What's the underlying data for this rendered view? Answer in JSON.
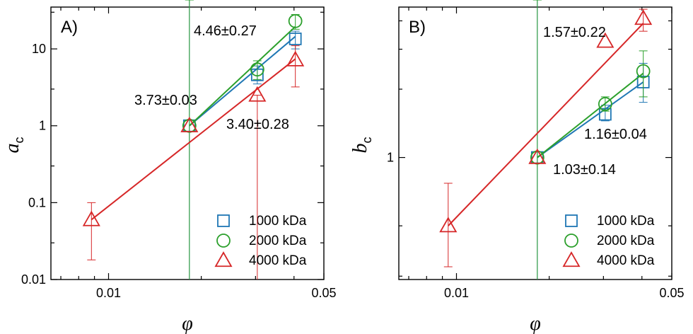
{
  "colors": {
    "1000 kDa": "#1f77b4",
    "2000 kDa": "#2ca02c",
    "4000 kDa": "#d62728"
  },
  "chart_data": [
    {
      "type": "scatter",
      "panel_label": "A)",
      "xlabel": "φ",
      "ylabel_main": "a",
      "ylabel_sub": "c",
      "xscale": "log",
      "yscale": "log",
      "xlim": [
        0.0065,
        0.05
      ],
      "ylim": [
        0.01,
        35
      ],
      "xticks": [
        0.01,
        0.05
      ],
      "xticklabels": [
        "0.01",
        "0.05"
      ],
      "yticks": [
        0.01,
        0.1,
        1,
        10
      ],
      "yticklabels": [
        "0.01",
        "0.1",
        "1",
        "10"
      ],
      "legend_position": "bottom-right",
      "series": [
        {
          "name": "1000 kDa",
          "marker": "square",
          "x": [
            0.0183,
            0.0304,
            0.0404
          ],
          "y": [
            1.0,
            4.6,
            13.5
          ],
          "err_lo": [
            0,
            3.5,
            10.0
          ],
          "err_hi": [
            0,
            6.0,
            17.0
          ],
          "fit_x": [
            0.0183,
            0.0404
          ],
          "fit_y": [
            1.0,
            14.5
          ],
          "annotation": "3.73±0.03"
        },
        {
          "name": "2000 kDa",
          "marker": "circle",
          "x": [
            0.0183,
            0.0304,
            0.0404
          ],
          "y": [
            1.0,
            5.4,
            23.0
          ],
          "err_lo": [
            0,
            4.0,
            18.0
          ],
          "err_hi": [
            0,
            7.0,
            28.0
          ],
          "fit_x": [
            0.0183,
            0.0404
          ],
          "fit_y": [
            1.0,
            19.5
          ],
          "annotation": "4.46±0.27"
        },
        {
          "name": "4000 kDa",
          "marker": "triangle",
          "x": [
            0.0088,
            0.0183,
            0.0304,
            0.0404
          ],
          "y": [
            0.06,
            1.0,
            2.5,
            7.2
          ],
          "err_lo": [
            0.018,
            1.0,
            0.01,
            3.2
          ],
          "err_hi": [
            0.1,
            1.0,
            2.5,
            11.0
          ],
          "fit_x": [
            0.0088,
            0.0404
          ],
          "fit_y": [
            0.06,
            7.4
          ],
          "annotation": "3.40±0.28"
        }
      ]
    },
    {
      "type": "scatter",
      "panel_label": "B)",
      "xlabel": "φ",
      "ylabel_main": "b",
      "ylabel_sub": "c",
      "xscale": "log",
      "yscale": "log",
      "xlim": [
        0.0065,
        0.05
      ],
      "ylim": [
        0.29,
        4.6
      ],
      "xticks": [
        0.01,
        0.05
      ],
      "xticklabels": [
        "0.01",
        "0.05"
      ],
      "yticks": [
        1
      ],
      "yticklabels": [
        "1"
      ],
      "legend_position": "bottom-right",
      "series": [
        {
          "name": "1000 kDa",
          "marker": "square",
          "x": [
            0.0183,
            0.0304,
            0.0404
          ],
          "y": [
            1.0,
            1.55,
            2.15
          ],
          "err_lo": [
            0,
            1.45,
            1.75
          ],
          "err_hi": [
            0,
            1.7,
            2.6
          ],
          "fit_x": [
            0.0183,
            0.0404
          ],
          "fit_y": [
            1.0,
            2.15
          ],
          "annotation": "1.03±0.14"
        },
        {
          "name": "2000 kDa",
          "marker": "circle",
          "x": [
            0.0183,
            0.0304,
            0.0404
          ],
          "y": [
            1.0,
            1.72,
            2.4
          ],
          "err_lo": [
            0,
            1.6,
            1.85
          ],
          "err_hi": [
            0,
            1.85,
            2.95
          ],
          "fit_x": [
            0.0183,
            0.0404
          ],
          "fit_y": [
            1.0,
            2.35
          ],
          "annotation": "1.16±0.04"
        },
        {
          "name": "4000 kDa",
          "marker": "triangle",
          "x": [
            0.0094,
            0.0183,
            0.0304,
            0.0404
          ],
          "y": [
            0.5,
            1.0,
            3.25,
            4.1
          ],
          "err_lo": [
            0.33,
            1.0,
            3.25,
            3.6
          ],
          "err_hi": [
            0.77,
            1.0,
            3.25,
            4.5
          ],
          "fit_x": [
            0.0094,
            0.0404
          ],
          "fit_y": [
            0.5,
            3.9
          ],
          "annotation": "1.57±0.22"
        }
      ]
    }
  ]
}
